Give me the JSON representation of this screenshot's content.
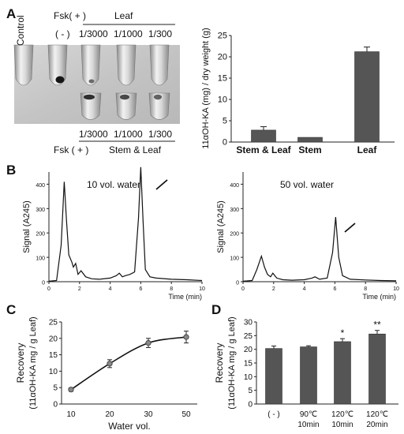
{
  "panel_labels": {
    "a": "A",
    "b": "B",
    "c": "C",
    "d": "D"
  },
  "photo": {
    "control_label": "Control",
    "fsk_top": "Fsk( + )",
    "leaf_group": "Leaf",
    "neg_label": "( - )",
    "top_dilutions": [
      "1/3000",
      "1/1000",
      "1/300"
    ],
    "bottom_dilutions": [
      "1/3000",
      "1/1000",
      "1/300"
    ],
    "fsk_bottom": "Fsk ( + )",
    "stem_leaf_group": "Stem & Leaf"
  },
  "chromatograms": [
    {
      "title": "10 vol. water",
      "ylabel": "Signal (A245)",
      "xlabel": "Time (min)"
    },
    {
      "title": "50 vol. water",
      "ylabel": "Signal (A245)",
      "xlabel": "Time (min)"
    }
  ],
  "chart_data": [
    {
      "id": "A-bar",
      "type": "bar",
      "categories": [
        "Stem & Leaf",
        "Stem",
        "Leaf"
      ],
      "values": [
        2.8,
        1.1,
        21.2
      ],
      "errors": [
        0.8,
        0.0,
        1.1
      ],
      "ylabel": "11αOH-KA (mg) / dry weight (g)",
      "ylim": [
        0,
        25
      ],
      "yticks": [
        0,
        5,
        10,
        15,
        20,
        25
      ],
      "grid": false,
      "bar_color": "#555555"
    },
    {
      "id": "B-left",
      "type": "line",
      "title": "10 vol. water",
      "xlabel": "Time (min)",
      "ylabel": "Signal (A245)",
      "xlim": [
        0,
        10
      ],
      "ylim": [
        0,
        450
      ],
      "xticks": [
        0,
        2,
        4,
        6,
        8,
        10
      ],
      "yticks": [
        0,
        100,
        200,
        300,
        400
      ],
      "x": [
        0,
        0.5,
        0.8,
        1.0,
        1.15,
        1.3,
        1.5,
        1.6,
        1.75,
        1.9,
        2.1,
        2.4,
        2.8,
        3.3,
        4.0,
        4.4,
        4.6,
        4.8,
        5.0,
        5.3,
        5.6,
        5.85,
        6.0,
        6.15,
        6.3,
        6.6,
        7.0,
        8.0,
        9.0,
        10.0
      ],
      "y": [
        2,
        5,
        150,
        410,
        250,
        110,
        80,
        60,
        75,
        30,
        45,
        20,
        12,
        10,
        15,
        25,
        35,
        20,
        25,
        30,
        40,
        260,
        470,
        250,
        50,
        20,
        15,
        10,
        8,
        5
      ],
      "annotations": [
        "arrow pointing to peak at ~6.1 min"
      ]
    },
    {
      "id": "B-right",
      "type": "line",
      "title": "50 vol. water",
      "xlabel": "Time (min)",
      "ylabel": "Signal (A245)",
      "xlim": [
        0,
        10
      ],
      "ylim": [
        0,
        450
      ],
      "xticks": [
        0,
        2,
        4,
        6,
        8,
        10
      ],
      "yticks": [
        0,
        100,
        200,
        300,
        400
      ],
      "x": [
        0,
        0.6,
        0.9,
        1.2,
        1.4,
        1.6,
        1.8,
        1.95,
        2.2,
        2.6,
        3.2,
        4.0,
        4.5,
        4.7,
        5.0,
        5.5,
        5.85,
        6.05,
        6.25,
        6.5,
        7.0,
        8.0,
        9.0,
        10.0
      ],
      "y": [
        2,
        5,
        50,
        105,
        60,
        30,
        20,
        35,
        15,
        8,
        6,
        8,
        15,
        20,
        10,
        15,
        120,
        265,
        100,
        25,
        10,
        7,
        5,
        4
      ],
      "annotations": [
        "arrow pointing to peak at ~6.1 min"
      ]
    },
    {
      "id": "C",
      "type": "line",
      "xlabel": "Water vol.",
      "ylabel": "Recovery",
      "ylabel2": "(11αOH-KA mg / g Leaf)",
      "categories": [
        10,
        20,
        30,
        50
      ],
      "values": [
        4.4,
        12.3,
        18.6,
        20.4
      ],
      "errors": [
        0.5,
        1.2,
        1.4,
        1.8
      ],
      "ylim": [
        0,
        25
      ],
      "yticks": [
        0,
        5,
        10,
        15,
        20,
        25
      ],
      "grid": false
    },
    {
      "id": "D",
      "type": "bar",
      "categories": [
        [
          "( - )"
        ],
        [
          "90℃",
          "10min"
        ],
        [
          "120℃",
          "10min"
        ],
        [
          "120℃",
          "20min"
        ]
      ],
      "values": [
        20.3,
        20.9,
        22.8,
        25.6
      ],
      "errors": [
        0.9,
        0.4,
        1.1,
        1.3
      ],
      "significance": [
        "",
        "",
        "*",
        "**"
      ],
      "ylabel": "Recovery",
      "ylabel2": "(11αOH-KA mg / g Leaf)",
      "ylim": [
        0,
        30
      ],
      "yticks": [
        0,
        5,
        10,
        15,
        20,
        25,
        30
      ],
      "grid": false,
      "bar_color": "#555555"
    }
  ]
}
